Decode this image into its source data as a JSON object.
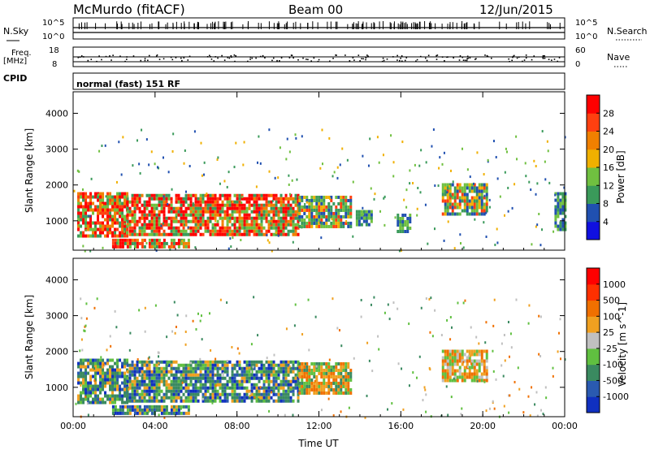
{
  "header": {
    "radar": "McMurdo (fitACF)",
    "beam": "Beam 00",
    "date": "12/Jun/2015"
  },
  "top_panels": {
    "nsky_label": "N.Sky",
    "nsky_ticks": [
      "10^5",
      "10^0"
    ],
    "nsearch_label": "N.Search",
    "freq_label": "Freq.",
    "freq_unit": "[MHz]",
    "freq_ticks": [
      "18",
      "8"
    ],
    "nave_label": "Nave",
    "nave_ticks": [
      "60",
      "0"
    ],
    "cpid_label": "CPID",
    "cpid_text": "normal (fast) 151 RF"
  },
  "chart_data": [
    {
      "type": "heatmap",
      "name": "Power",
      "ylabel": "Slant Range [km]",
      "ylim": [
        180,
        4600
      ],
      "yticks": [
        "4000",
        "3000",
        "2000",
        "1000"
      ],
      "ytick_values": [
        4000,
        3000,
        2000,
        1000
      ],
      "xlim": [
        0,
        24
      ],
      "colorbar": {
        "label": "Power [dB]",
        "tick_labels": [
          "28",
          "24",
          "20",
          "16",
          "12",
          "8",
          "4"
        ],
        "tick_values": [
          28,
          24,
          20,
          16,
          12,
          8,
          4
        ],
        "colors": [
          "#1010e0",
          "#2050b0",
          "#3a9a5a",
          "#70c040",
          "#f0b000",
          "#f08000",
          "#ff4010",
          "#ff0000"
        ]
      },
      "echo_regions": [
        {
          "t0": 0.2,
          "t1": 2.6,
          "r0": 600,
          "r1": 1800,
          "level": "strong"
        },
        {
          "t0": 2.6,
          "t1": 11.0,
          "r0": 600,
          "r1": 1750,
          "level": "strong"
        },
        {
          "t0": 11.0,
          "t1": 13.5,
          "r0": 850,
          "r1": 1700,
          "level": "medium"
        },
        {
          "t0": 13.8,
          "t1": 14.6,
          "r0": 850,
          "r1": 1300,
          "level": "weak"
        },
        {
          "t0": 15.8,
          "t1": 16.5,
          "r0": 700,
          "r1": 1200,
          "level": "weak"
        },
        {
          "t0": 18.0,
          "t1": 20.2,
          "r0": 1200,
          "r1": 2050,
          "level": "medium"
        },
        {
          "t0": 23.5,
          "t1": 24.0,
          "r0": 800,
          "r1": 1800,
          "level": "weak"
        },
        {
          "t0": 1.9,
          "t1": 5.6,
          "r0": 250,
          "r1": 500,
          "level": "strong"
        }
      ]
    },
    {
      "type": "heatmap",
      "name": "Velocity",
      "ylabel": "Slant Range [km]",
      "ylim": [
        180,
        4600
      ],
      "yticks": [
        "4000",
        "3000",
        "2000",
        "1000"
      ],
      "ytick_values": [
        4000,
        3000,
        2000,
        1000
      ],
      "xlim": [
        0,
        24
      ],
      "xticks": [
        "00:00",
        "04:00",
        "08:00",
        "12:00",
        "16:00",
        "20:00",
        "00:00"
      ],
      "xtick_values": [
        0,
        4,
        8,
        12,
        16,
        20,
        24
      ],
      "xlabel": "Time UT",
      "colorbar": {
        "label": "Velocity [m s^-1]",
        "tick_labels": [
          "1000",
          "500",
          "100",
          "25",
          "-25",
          "-100",
          "-500",
          "-1000"
        ],
        "tick_values": [
          1000,
          500,
          100,
          25,
          -25,
          -100,
          -500,
          -1000
        ],
        "colors": [
          "#1030c0",
          "#2a5ab0",
          "#3a8a60",
          "#60c040",
          "#c0c0c0",
          "#f0a020",
          "#f07000",
          "#ff3000",
          "#ff0000"
        ]
      },
      "echo_regions": [
        {
          "t0": 0.2,
          "t1": 2.6,
          "r0": 600,
          "r1": 1800,
          "level": "towards"
        },
        {
          "t0": 2.6,
          "t1": 11.0,
          "r0": 600,
          "r1": 1750,
          "level": "towards"
        },
        {
          "t0": 11.0,
          "t1": 13.5,
          "r0": 850,
          "r1": 1700,
          "level": "mixed"
        },
        {
          "t0": 18.0,
          "t1": 20.2,
          "r0": 1200,
          "r1": 2050,
          "level": "away"
        },
        {
          "t0": 1.9,
          "t1": 5.6,
          "r0": 250,
          "r1": 500,
          "level": "towards"
        }
      ]
    }
  ]
}
